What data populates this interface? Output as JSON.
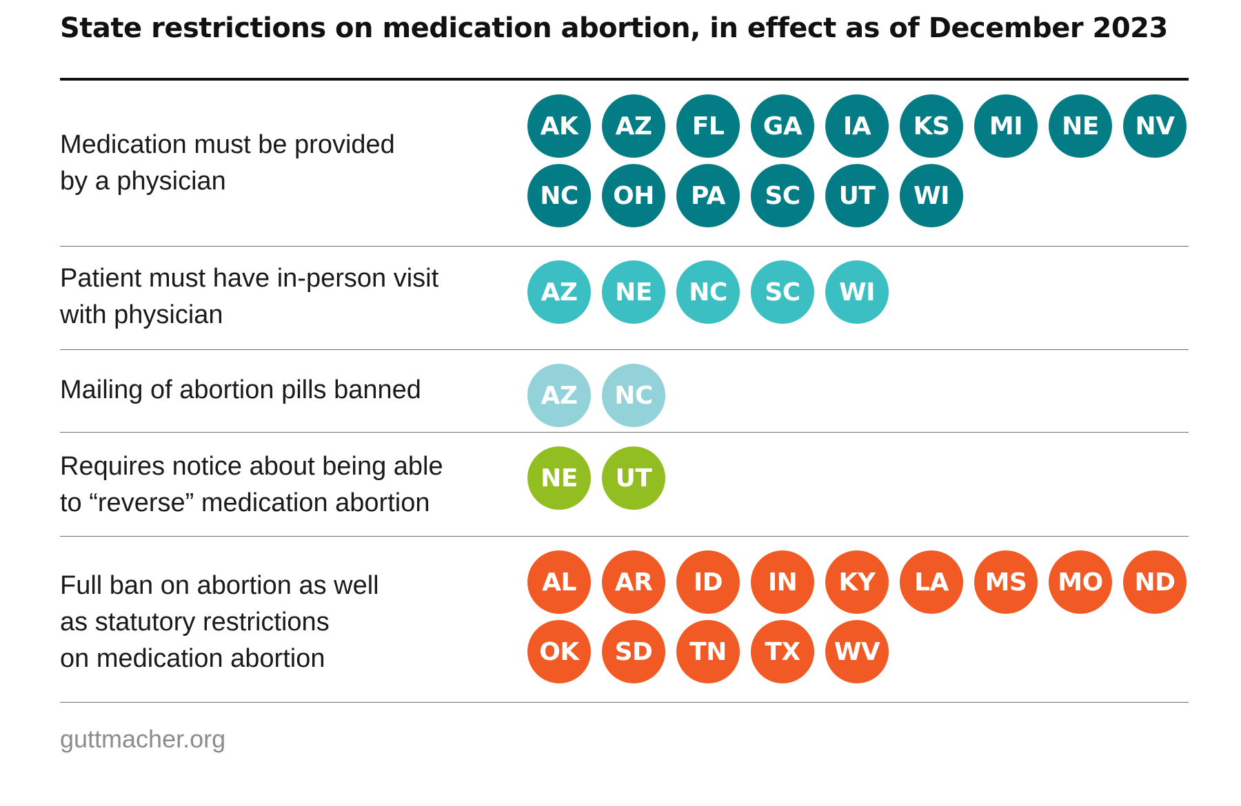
{
  "chart_data": {
    "type": "table",
    "title": "State restrictions on medication abortion, in effect as of December 2023",
    "rows": [
      {
        "label": "Medication must be provided\nby a physician",
        "color": "#047c86",
        "states": [
          "AK",
          "AZ",
          "FL",
          "GA",
          "IA",
          "KS",
          "MI",
          "NE",
          "NV",
          "NC",
          "OH",
          "PA",
          "SC",
          "UT",
          "WI"
        ]
      },
      {
        "label": "Patient must have in-person visit\nwith physician",
        "color": "#3cbfc2",
        "states": [
          "AZ",
          "NE",
          "NC",
          "SC",
          "WI"
        ]
      },
      {
        "label": "Mailing of abortion pills banned",
        "color": "#92d2d8",
        "states": [
          "AZ",
          "NC"
        ]
      },
      {
        "label": "Requires notice about being able\nto “reverse” medication abortion",
        "color": "#93be21",
        "states": [
          "NE",
          "UT"
        ]
      },
      {
        "label": "Full ban on abortion as well\nas statutory restrictions\non medication abortion",
        "color": "#f15a24",
        "states": [
          "AL",
          "AR",
          "ID",
          "IN",
          "KY",
          "LA",
          "MS",
          "MO",
          "ND",
          "OK",
          "SD",
          "TN",
          "TX",
          "WV"
        ]
      }
    ]
  },
  "source": "guttmacher.org"
}
